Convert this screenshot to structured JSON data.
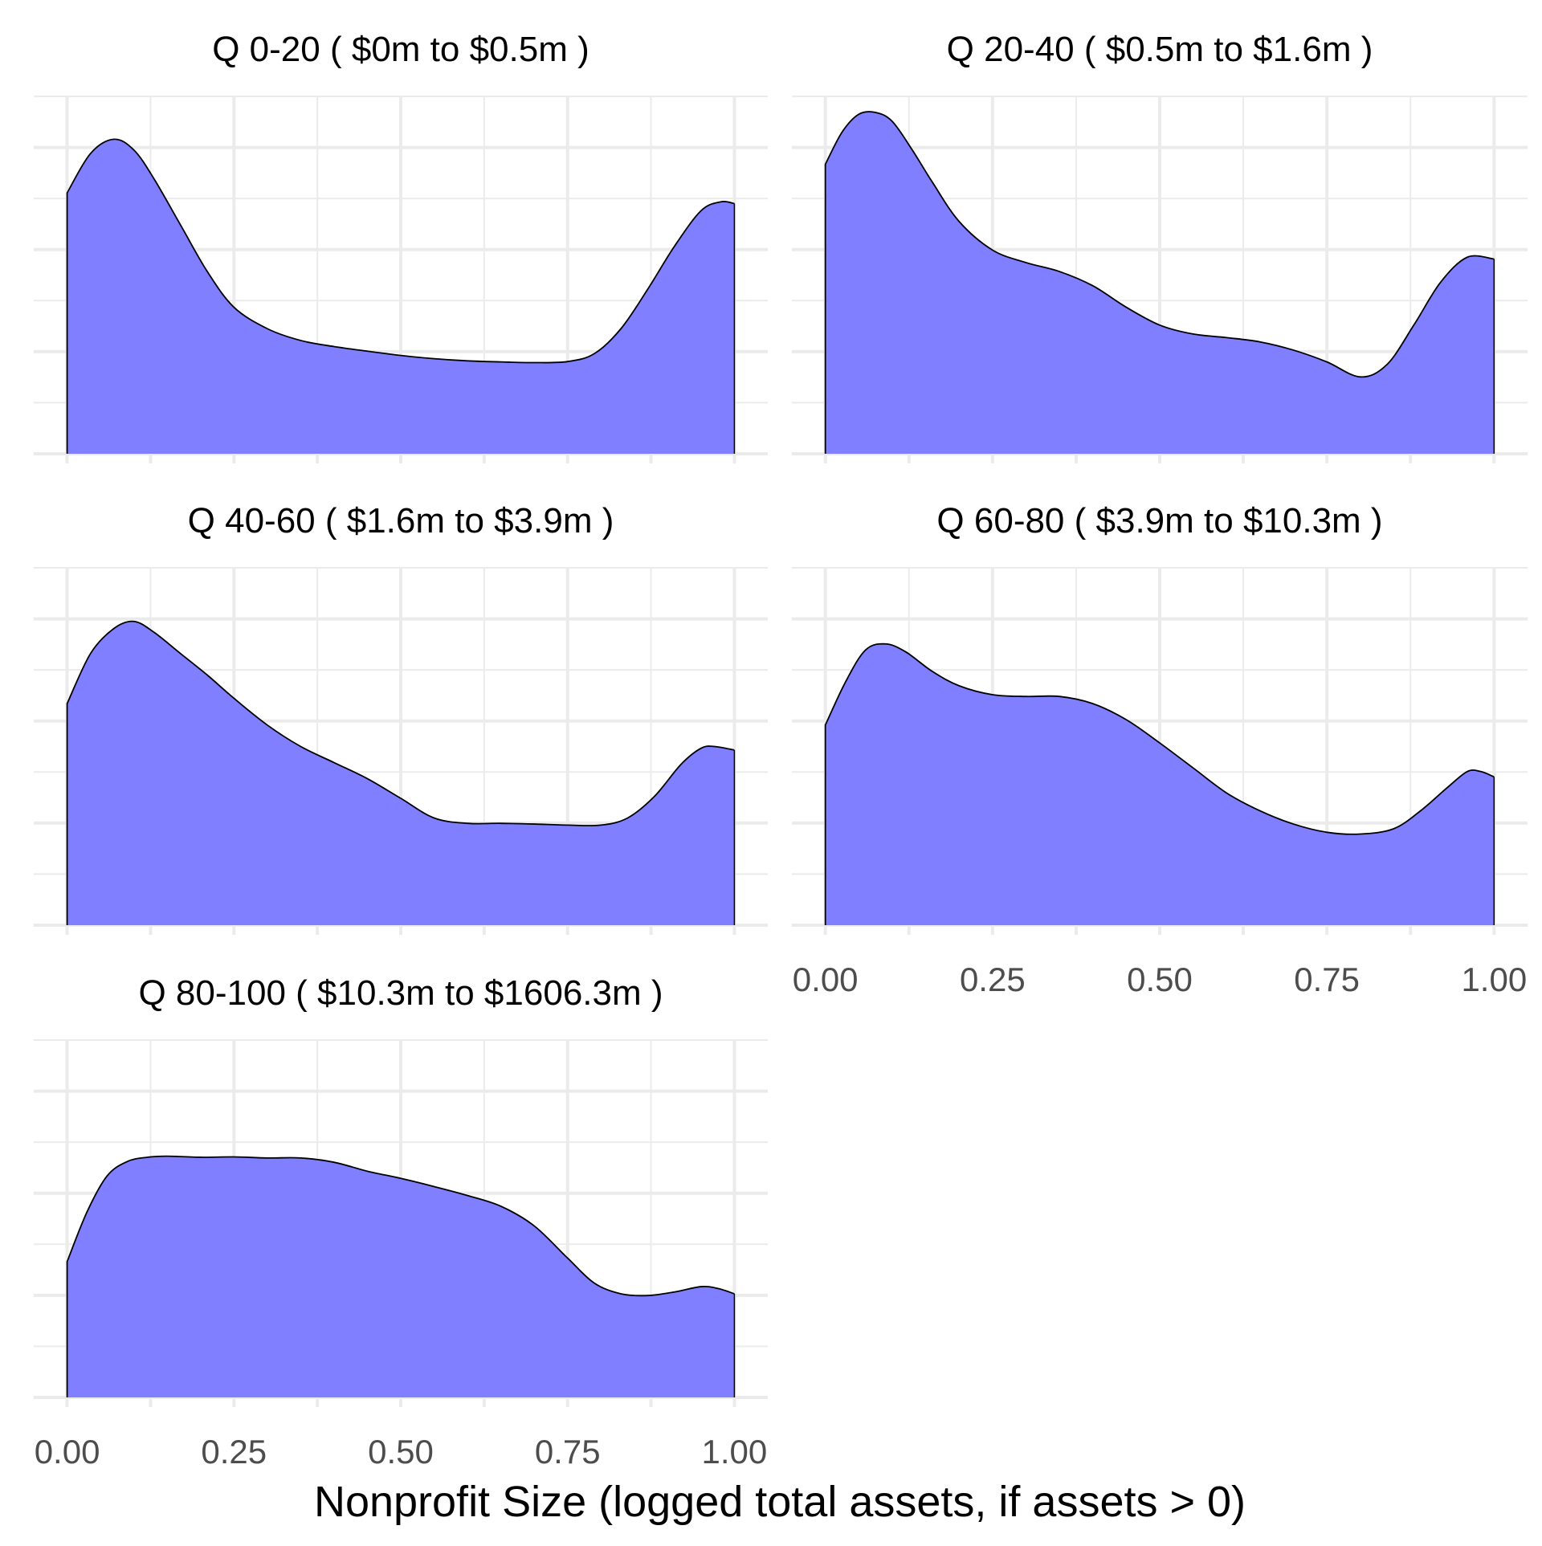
{
  "figure": {
    "xlabel": "Nonprofit Size (logged total assets, if assets > 0)"
  },
  "chart_data": {
    "type": "area",
    "xlabel": "Nonprofit Size (logged total assets, if assets > 0)",
    "ylabel": "",
    "xlim": [
      0,
      1
    ],
    "x_ticks": [
      0,
      0.25,
      0.5,
      0.75,
      1
    ],
    "x_tick_labels": [
      "0.00",
      "0.25",
      "0.50",
      "0.75",
      "1.00"
    ],
    "ylim": [
      0,
      1
    ],
    "grid": true,
    "fill_color": "#7F7FFF",
    "line_color": "#000000",
    "panels": [
      {
        "title": "Q 0-20   ( $0m to $0.5m )",
        "x": [
          0,
          0.035,
          0.07,
          0.1,
          0.13,
          0.17,
          0.21,
          0.25,
          0.3,
          0.35,
          0.4,
          0.45,
          0.5,
          0.55,
          0.6,
          0.65,
          0.7,
          0.75,
          0.79,
          0.83,
          0.87,
          0.91,
          0.95,
          0.98,
          1.0
        ],
        "y": [
          0.73,
          0.84,
          0.88,
          0.85,
          0.77,
          0.64,
          0.51,
          0.41,
          0.35,
          0.317,
          0.3,
          0.287,
          0.275,
          0.266,
          0.26,
          0.257,
          0.255,
          0.258,
          0.28,
          0.35,
          0.46,
          0.58,
          0.68,
          0.705,
          0.7
        ]
      },
      {
        "title": "Q 20-40   ( $0.5m to $1.6m )",
        "x": [
          0,
          0.025,
          0.05,
          0.075,
          0.1,
          0.13,
          0.16,
          0.2,
          0.25,
          0.3,
          0.35,
          0.4,
          0.45,
          0.5,
          0.55,
          0.6,
          0.65,
          0.7,
          0.75,
          0.8,
          0.84,
          0.88,
          0.92,
          0.96,
          1.0
        ],
        "y": [
          0.81,
          0.9,
          0.95,
          0.955,
          0.93,
          0.85,
          0.76,
          0.65,
          0.57,
          0.535,
          0.51,
          0.47,
          0.41,
          0.36,
          0.335,
          0.325,
          0.313,
          0.29,
          0.257,
          0.215,
          0.25,
          0.36,
          0.48,
          0.55,
          0.545
        ]
      },
      {
        "title": "Q 40-60   ( $1.6m to $3.9m )",
        "x": [
          0,
          0.035,
          0.07,
          0.1,
          0.13,
          0.17,
          0.21,
          0.25,
          0.3,
          0.35,
          0.4,
          0.45,
          0.5,
          0.55,
          0.6,
          0.65,
          0.7,
          0.75,
          0.8,
          0.84,
          0.88,
          0.92,
          0.95,
          0.97,
          1.0
        ],
        "y": [
          0.62,
          0.76,
          0.83,
          0.85,
          0.82,
          0.76,
          0.7,
          0.635,
          0.56,
          0.5,
          0.455,
          0.41,
          0.355,
          0.3,
          0.285,
          0.285,
          0.283,
          0.28,
          0.28,
          0.3,
          0.36,
          0.45,
          0.495,
          0.5,
          0.49
        ]
      },
      {
        "title": "Q 60-80   ( $3.9m to $10.3m )",
        "x": [
          0,
          0.03,
          0.06,
          0.09,
          0.12,
          0.16,
          0.2,
          0.25,
          0.3,
          0.35,
          0.4,
          0.45,
          0.5,
          0.55,
          0.6,
          0.65,
          0.7,
          0.75,
          0.8,
          0.85,
          0.89,
          0.93,
          0.96,
          0.98,
          1.0
        ],
        "y": [
          0.56,
          0.68,
          0.77,
          0.787,
          0.765,
          0.71,
          0.67,
          0.645,
          0.64,
          0.64,
          0.62,
          0.575,
          0.51,
          0.44,
          0.37,
          0.32,
          0.283,
          0.26,
          0.255,
          0.27,
          0.32,
          0.385,
          0.43,
          0.43,
          0.415
        ]
      },
      {
        "title": "Q 80-100   ( $10.3m to $1606.3m )",
        "x": [
          0,
          0.03,
          0.06,
          0.09,
          0.12,
          0.15,
          0.2,
          0.25,
          0.3,
          0.35,
          0.4,
          0.45,
          0.5,
          0.55,
          0.6,
          0.65,
          0.7,
          0.75,
          0.79,
          0.83,
          0.87,
          0.91,
          0.95,
          0.975,
          1.0
        ],
        "y": [
          0.38,
          0.52,
          0.62,
          0.66,
          0.672,
          0.675,
          0.672,
          0.673,
          0.67,
          0.67,
          0.658,
          0.633,
          0.613,
          0.59,
          0.565,
          0.535,
          0.48,
          0.39,
          0.32,
          0.29,
          0.285,
          0.295,
          0.31,
          0.305,
          0.29
        ]
      }
    ]
  }
}
